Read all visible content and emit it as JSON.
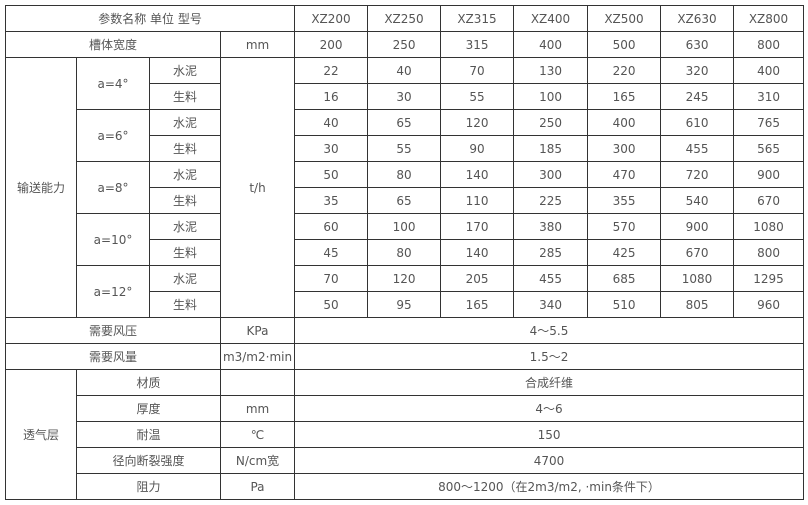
{
  "header": {
    "label": "参数名称 单位 型号",
    "models": [
      "XZ200",
      "XZ250",
      "XZ315",
      "XZ400",
      "XZ500",
      "XZ630",
      "XZ800"
    ]
  },
  "width_row": {
    "label": "槽体宽度",
    "unit": "mm",
    "values": [
      "200",
      "250",
      "315",
      "400",
      "500",
      "630",
      "800"
    ]
  },
  "capacity": {
    "label": "输送能力",
    "unit": "t/h",
    "groups": [
      {
        "angle": "a=4°",
        "rows": [
          {
            "material": "水泥",
            "values": [
              "22",
              "40",
              "70",
              "130",
              "220",
              "320",
              "400"
            ]
          },
          {
            "material": "生料",
            "values": [
              "16",
              "30",
              "55",
              "100",
              "165",
              "245",
              "310"
            ]
          }
        ]
      },
      {
        "angle": "a=6°",
        "rows": [
          {
            "material": "水泥",
            "values": [
              "40",
              "65",
              "120",
              "250",
              "400",
              "610",
              "765"
            ]
          },
          {
            "material": "生料",
            "values": [
              "30",
              "55",
              "90",
              "185",
              "300",
              "455",
              "565"
            ]
          }
        ]
      },
      {
        "angle": "a=8°",
        "rows": [
          {
            "material": "水泥",
            "values": [
              "50",
              "80",
              "140",
              "300",
              "470",
              "720",
              "900"
            ]
          },
          {
            "material": "生料",
            "values": [
              "35",
              "65",
              "110",
              "225",
              "355",
              "540",
              "670"
            ]
          }
        ]
      },
      {
        "angle": "a=10°",
        "rows": [
          {
            "material": "水泥",
            "values": [
              "60",
              "100",
              "170",
              "380",
              "570",
              "900",
              "1080"
            ]
          },
          {
            "material": "生料",
            "values": [
              "45",
              "80",
              "140",
              "285",
              "425",
              "670",
              "800"
            ]
          }
        ]
      },
      {
        "angle": "a=12°",
        "rows": [
          {
            "material": "水泥",
            "values": [
              "70",
              "120",
              "205",
              "455",
              "685",
              "1080",
              "1295"
            ]
          },
          {
            "material": "生料",
            "values": [
              "50",
              "95",
              "165",
              "340",
              "510",
              "805",
              "960"
            ]
          }
        ]
      }
    ]
  },
  "pressure": {
    "label": "需要风压",
    "unit": "KPa",
    "value": "4～5.5"
  },
  "airflow": {
    "label": "需要风量",
    "unit": "m3/m2·min",
    "value": "1.5～2"
  },
  "layer": {
    "label": "透气层",
    "rows": [
      {
        "label": "材质",
        "unit": "",
        "value": "合成纤维"
      },
      {
        "label": "厚度",
        "unit": "mm",
        "value": "4～6"
      },
      {
        "label": "耐温",
        "unit": "℃",
        "value": "150"
      },
      {
        "label": "径向断裂强度",
        "unit": "N/cm宽",
        "value": "4700"
      },
      {
        "label": "阻力",
        "unit": "Pa",
        "value": "800～1200（在2m3/m2, ·min条件下）"
      }
    ]
  }
}
